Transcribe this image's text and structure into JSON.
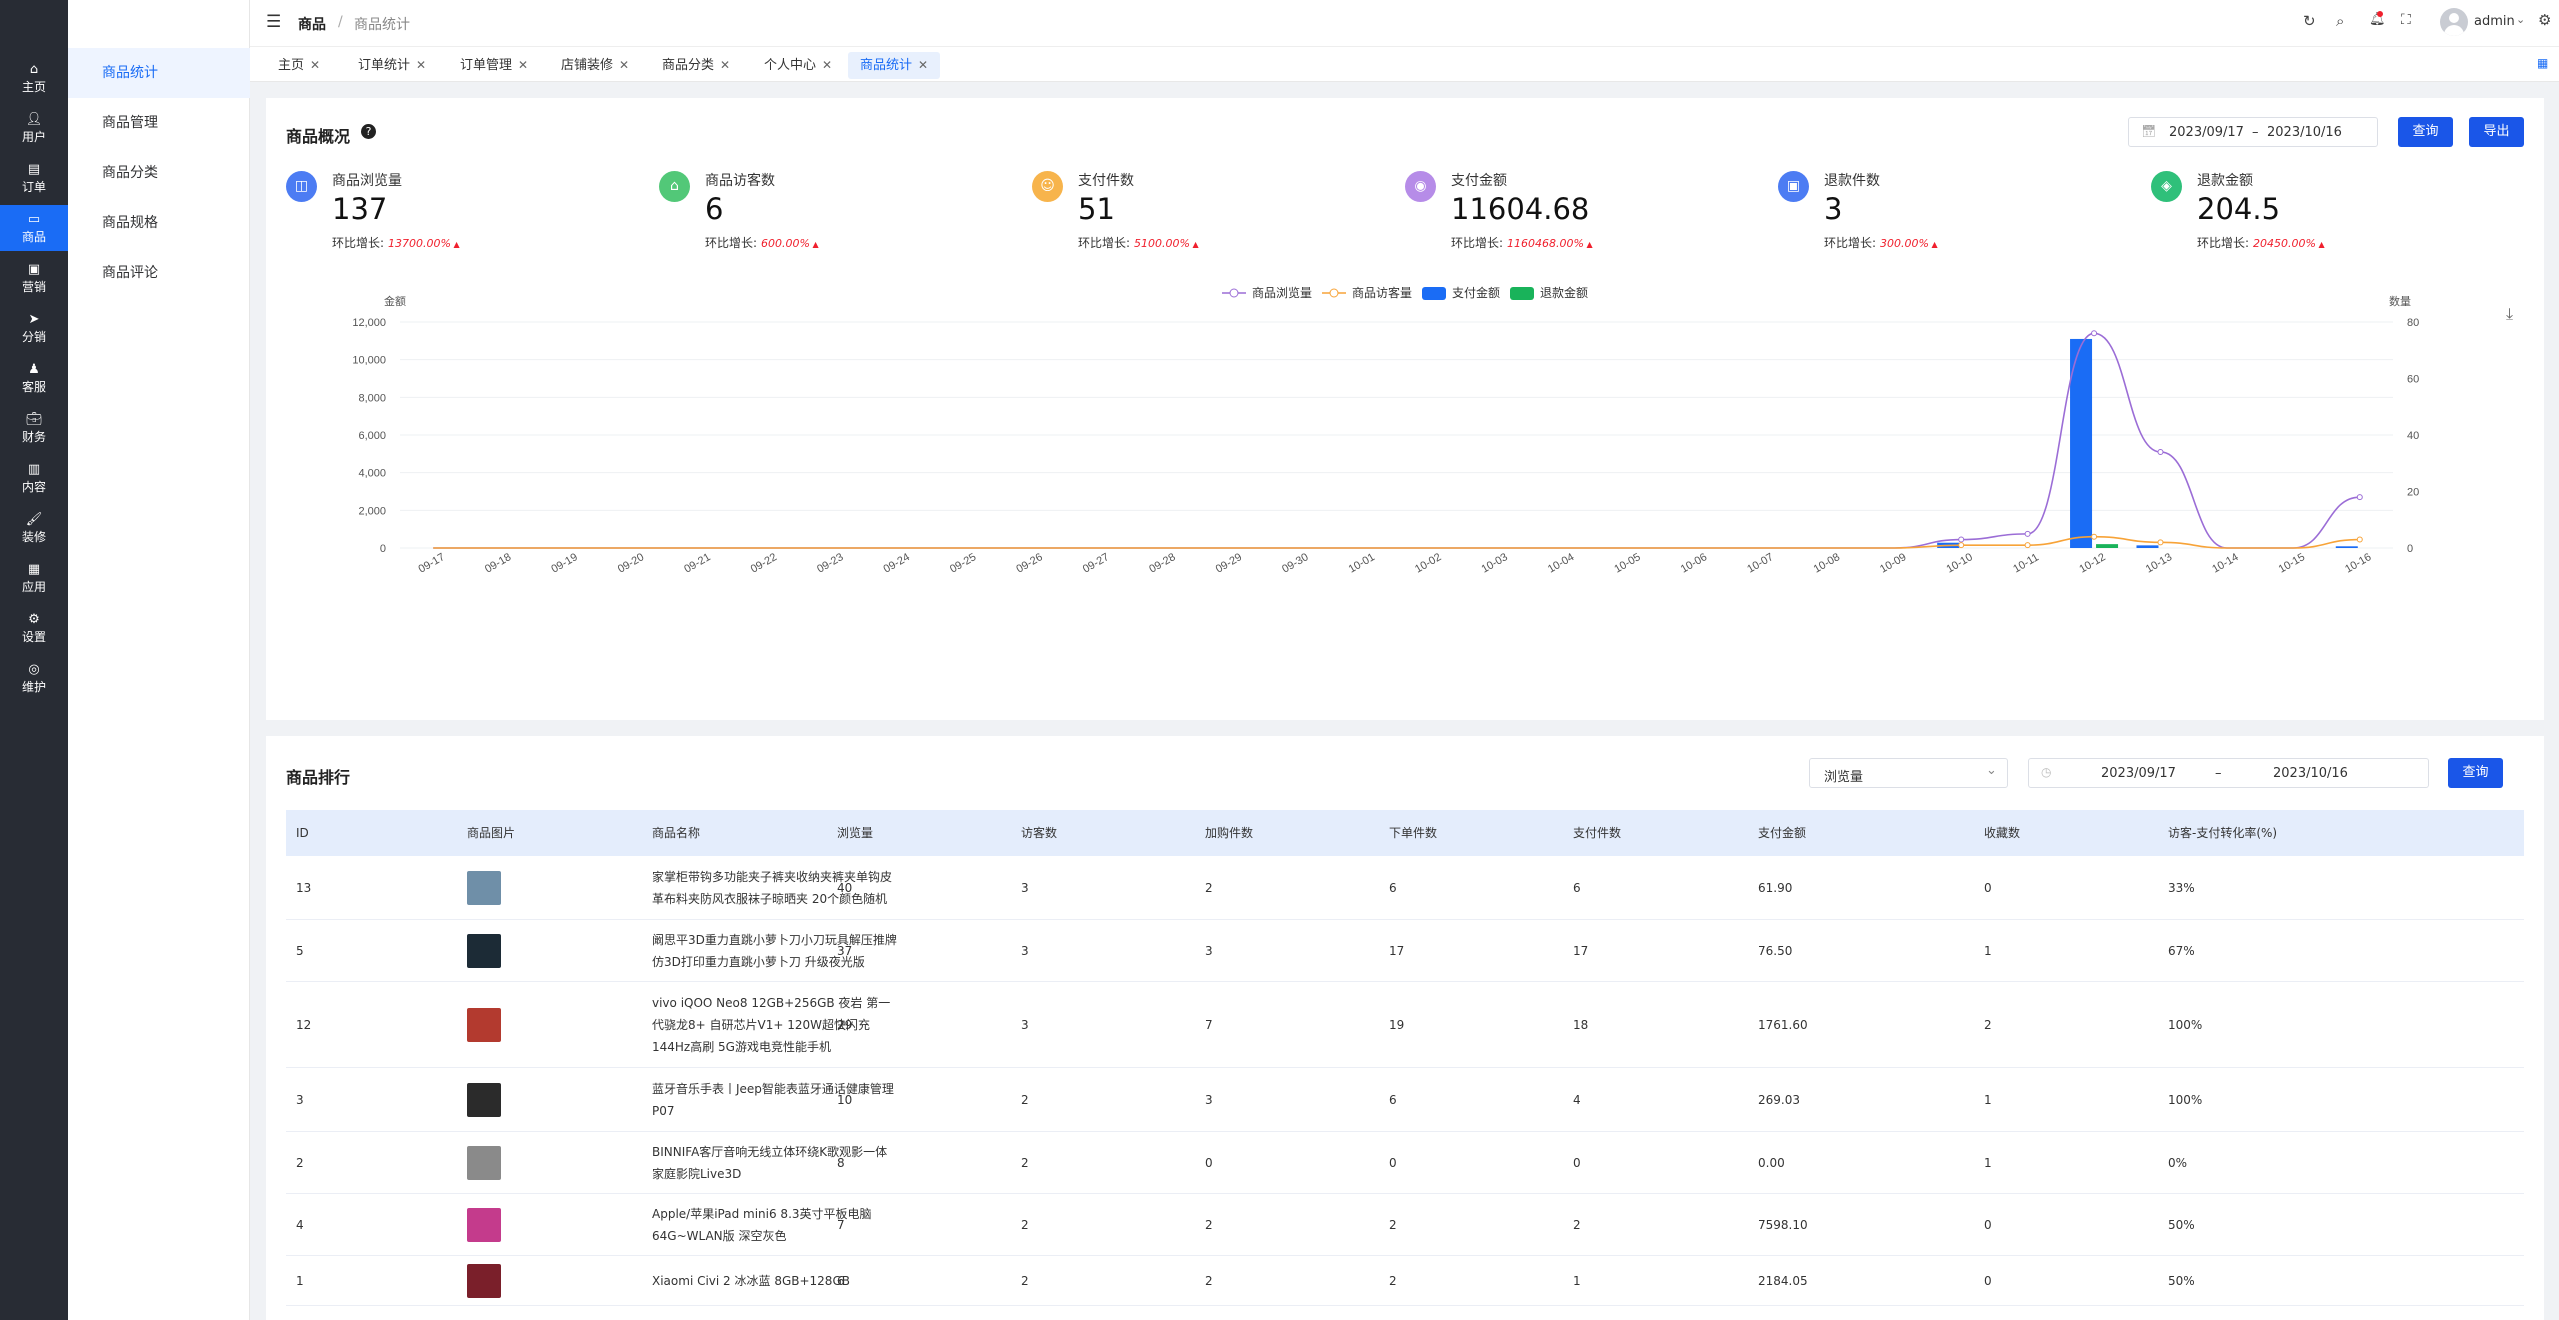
{
  "sidebar": {
    "items": [
      {
        "icon": "home-icon",
        "label": "主页"
      },
      {
        "icon": "user-icon",
        "label": "用户"
      },
      {
        "icon": "order-icon",
        "label": "订单"
      },
      {
        "icon": "goods-icon",
        "label": "商品"
      },
      {
        "icon": "marketing-icon",
        "label": "营销"
      },
      {
        "icon": "distribution-icon",
        "label": "分销"
      },
      {
        "icon": "service-icon",
        "label": "客服"
      },
      {
        "icon": "finance-icon",
        "label": "财务"
      },
      {
        "icon": "content-icon",
        "label": "内容"
      },
      {
        "icon": "decorate-icon",
        "label": "装修"
      },
      {
        "icon": "apps-icon",
        "label": "应用"
      },
      {
        "icon": "settings-icon",
        "label": "设置"
      },
      {
        "icon": "maintain-icon",
        "label": "维护"
      }
    ]
  },
  "submenu": {
    "items": [
      "商品统计",
      "商品管理",
      "商品分类",
      "商品规格",
      "商品评论"
    ]
  },
  "header": {
    "breadcrumb_root": "商品",
    "breadcrumb_sep": "/",
    "breadcrumb_current": "商品统计",
    "username": "admin"
  },
  "tabs": [
    "主页",
    "订单统计",
    "订单管理",
    "店铺装修",
    "商品分类",
    "个人中心",
    "商品统计"
  ],
  "overview": {
    "title": "商品概况",
    "date_start": "2023/09/17",
    "date_sep": "–",
    "date_end": "2023/10/16",
    "query_label": "查询",
    "export_label": "导出",
    "kpis": [
      {
        "label": "商品浏览量",
        "value": "137",
        "growth_label": "环比增长:",
        "growth": "13700.00%",
        "color": "#4c7cf3",
        "icon": "browse-icon"
      },
      {
        "label": "商品访客数",
        "value": "6",
        "growth_label": "环比增长:",
        "growth": "600.00%",
        "color": "#52c878",
        "icon": "visitor-icon"
      },
      {
        "label": "支付件数",
        "value": "51",
        "growth_label": "环比增长:",
        "growth": "5100.00%",
        "color": "#f7b44c",
        "icon": "pay-count-icon"
      },
      {
        "label": "支付金额",
        "value": "11604.68",
        "growth_label": "环比增长:",
        "growth": "1160468.00%",
        "color": "#b68ce8",
        "icon": "pay-amount-icon"
      },
      {
        "label": "退款件数",
        "value": "3",
        "growth_label": "环比增长:",
        "growth": "300.00%",
        "color": "#4c7cf3",
        "icon": "refund-count-icon"
      },
      {
        "label": "退款金额",
        "value": "204.5",
        "growth_label": "环比增长:",
        "growth": "20450.00%",
        "color": "#2fc07a",
        "icon": "refund-amount-icon"
      }
    ]
  },
  "chart_data": {
    "type": "bar",
    "categories": [
      "09-17",
      "09-18",
      "09-19",
      "09-20",
      "09-21",
      "09-22",
      "09-23",
      "09-24",
      "09-25",
      "09-26",
      "09-27",
      "09-28",
      "09-29",
      "09-30",
      "10-01",
      "10-02",
      "10-03",
      "10-04",
      "10-05",
      "10-06",
      "10-07",
      "10-08",
      "10-09",
      "10-10",
      "10-11",
      "10-12",
      "10-13",
      "10-14",
      "10-15",
      "10-16"
    ],
    "ylabel": "金额",
    "y2label": "数量",
    "ylim": [
      0,
      12000
    ],
    "y2lim": [
      0,
      80
    ],
    "yticks": [
      "0",
      "2,000",
      "4,000",
      "6,000",
      "8,000",
      "10,000",
      "12,000"
    ],
    "y2ticks": [
      "0",
      "20",
      "40",
      "60",
      "80"
    ],
    "legend_position": "top-center",
    "series": [
      {
        "name": "商品浏览量",
        "type": "line",
        "axis": "right",
        "color": "#9b6dd6",
        "values": [
          0,
          0,
          0,
          0,
          0,
          0,
          0,
          0,
          0,
          0,
          0,
          0,
          0,
          0,
          0,
          0,
          0,
          0,
          0,
          0,
          0,
          0,
          0,
          3,
          5,
          76,
          34,
          0,
          0,
          18
        ]
      },
      {
        "name": "商品访客量",
        "type": "line",
        "axis": "right",
        "color": "#f7a338",
        "values": [
          0,
          0,
          0,
          0,
          0,
          0,
          0,
          0,
          0,
          0,
          0,
          0,
          0,
          0,
          0,
          0,
          0,
          0,
          0,
          0,
          0,
          0,
          0,
          1,
          1,
          4,
          2,
          0,
          0,
          3
        ]
      },
      {
        "name": "支付金额",
        "type": "bar",
        "axis": "left",
        "color": "#1a6cf5",
        "values": [
          0,
          0,
          0,
          0,
          0,
          0,
          0,
          0,
          0,
          0,
          0,
          0,
          0,
          0,
          0,
          0,
          0,
          0,
          0,
          0,
          0,
          0,
          0,
          280,
          0,
          11100,
          140,
          0,
          0,
          90
        ]
      },
      {
        "name": "退款金额",
        "type": "bar",
        "axis": "left",
        "color": "#19b35a",
        "values": [
          0,
          0,
          0,
          0,
          0,
          0,
          0,
          0,
          0,
          0,
          0,
          0,
          0,
          0,
          0,
          0,
          0,
          0,
          0,
          0,
          0,
          0,
          0,
          0,
          0,
          205,
          0,
          0,
          0,
          0
        ]
      }
    ]
  },
  "ranking": {
    "title": "商品排行",
    "sort_select": "浏览量",
    "date_start": "2023/09/17",
    "date_sep": "–",
    "date_end": "2023/10/16",
    "query_label": "查询",
    "columns": [
      "ID",
      "商品图片",
      "商品名称",
      "浏览量",
      "访客数",
      "加购件数",
      "下单件数",
      "支付件数",
      "支付金额",
      "收藏数",
      "访客-支付转化率(%)"
    ],
    "rows": [
      {
        "id": "13",
        "name": "家掌柜带钩多功能夹子裤夹收纳夹裤夹单钩皮革布料夹防风衣服袜子晾晒夹 20个颜色随机",
        "views": "40",
        "visitors": "3",
        "cart": "2",
        "orders": "6",
        "paid": "6",
        "amount": "61.90",
        "fav": "0",
        "rate": "33%"
      },
      {
        "id": "5",
        "name": "阚思平3D重力直跳小萝卜刀小刀玩具解压推牌仿3D打印重力直跳小萝卜刀 升级夜光版",
        "views": "37",
        "visitors": "3",
        "cart": "3",
        "orders": "17",
        "paid": "17",
        "amount": "76.50",
        "fav": "1",
        "rate": "67%"
      },
      {
        "id": "12",
        "name": "vivo iQOO Neo8 12GB+256GB 夜岩 第一代骁龙8+ 自研芯片V1+ 120W超快闪充 144Hz高刷 5G游戏电竞性能手机",
        "views": "29",
        "visitors": "3",
        "cart": "7",
        "orders": "19",
        "paid": "18",
        "amount": "1761.60",
        "fav": "2",
        "rate": "100%"
      },
      {
        "id": "3",
        "name": "蓝牙音乐手表丨Jeep智能表蓝牙通话健康管理P07",
        "views": "10",
        "visitors": "2",
        "cart": "3",
        "orders": "6",
        "paid": "4",
        "amount": "269.03",
        "fav": "1",
        "rate": "100%"
      },
      {
        "id": "2",
        "name": "BINNIFA客厅音响无线立体环绕K歌观影一体家庭影院Live3D",
        "views": "8",
        "visitors": "2",
        "cart": "0",
        "orders": "0",
        "paid": "0",
        "amount": "0.00",
        "fav": "1",
        "rate": "0%"
      },
      {
        "id": "4",
        "name": "Apple/苹果iPad mini6 8.3英寸平板电脑 64G~WLAN版 深空灰色",
        "views": "7",
        "visitors": "2",
        "cart": "2",
        "orders": "2",
        "paid": "2",
        "amount": "7598.10",
        "fav": "0",
        "rate": "50%"
      },
      {
        "id": "1",
        "name": "Xiaomi Civi 2 冰冰蓝 8GB+128GB",
        "views": "6",
        "visitors": "2",
        "cart": "2",
        "orders": "2",
        "paid": "1",
        "amount": "2184.05",
        "fav": "0",
        "rate": "50%"
      }
    ]
  }
}
